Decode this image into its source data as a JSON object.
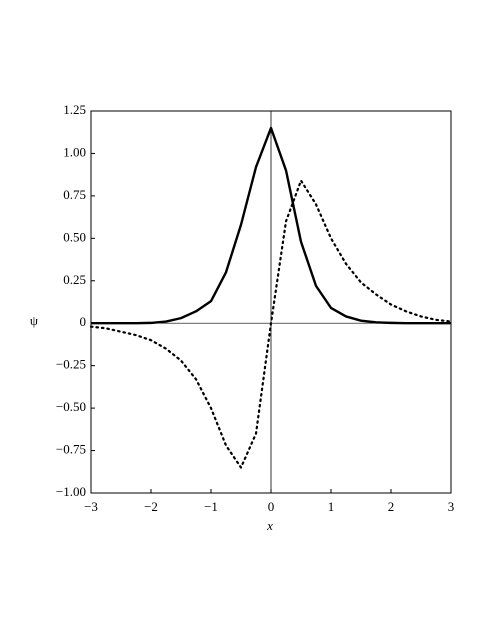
{
  "chart_data": {
    "type": "line",
    "x_label": "x",
    "y_label": "ψ",
    "x": [
      -3,
      -2.75,
      -2.5,
      -2.25,
      -2,
      -1.75,
      -1.5,
      -1.25,
      -1,
      -0.75,
      -0.5,
      -0.25,
      0,
      0.25,
      0.5,
      0.75,
      1,
      1.25,
      1.5,
      1.75,
      2,
      2.25,
      2.5,
      2.75,
      3
    ],
    "series": [
      {
        "color": "#000000",
        "style": "solid",
        "values": [
          0,
          0,
          0,
          0,
          0.002,
          0.01,
          0.03,
          0.07,
          0.13,
          0.3,
          0.58,
          0.92,
          1.15,
          0.9,
          0.48,
          0.22,
          0.09,
          0.04,
          0.015,
          0.005,
          0.002,
          0,
          0,
          0,
          0
        ]
      },
      {
        "color": "#000000",
        "style": "dotted",
        "values": [
          -0.02,
          -0.03,
          -0.05,
          -0.07,
          -0.1,
          -0.15,
          -0.22,
          -0.33,
          -0.5,
          -0.72,
          -0.85,
          -0.65,
          0,
          0.6,
          0.84,
          0.7,
          0.5,
          0.35,
          0.24,
          0.17,
          0.11,
          0.07,
          0.04,
          0.02,
          0.01
        ]
      }
    ],
    "xlim": [
      -3,
      3
    ],
    "xticks": [
      {
        "value": -3,
        "label": "−3"
      },
      {
        "value": -2,
        "label": "−2"
      },
      {
        "value": -1,
        "label": "−1"
      },
      0,
      1,
      2,
      3
    ],
    "ylim": [
      -1,
      1.25
    ],
    "yticks": [
      {
        "value": -1,
        "label": "−1.00"
      },
      {
        "value": -0.75,
        "label": "−0.75"
      },
      {
        "value": -0.5,
        "label": "−0.50"
      },
      {
        "value": -0.25,
        "label": "−0.25"
      },
      0,
      {
        "value": 0.25,
        "label": "0.25"
      },
      {
        "value": 0.5,
        "label": "0.50"
      },
      {
        "value": 0.75,
        "label": "0.75"
      },
      {
        "value": 1,
        "label": "1.00"
      },
      1.25
    ],
    "grid": false
  }
}
